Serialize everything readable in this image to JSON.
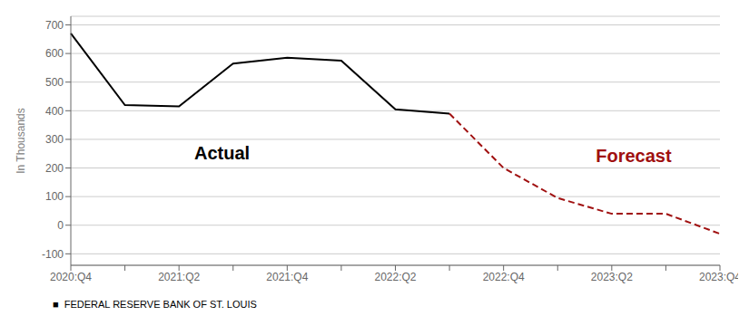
{
  "chart_data": {
    "type": "line",
    "categories": [
      "2020:Q4",
      null,
      "2021:Q2",
      null,
      "2021:Q4",
      null,
      "2022:Q2",
      null,
      "2022:Q4",
      null,
      "2023:Q2",
      null,
      "2023:Q4"
    ],
    "series": [
      {
        "name": "Actual",
        "color": "#000000",
        "line_style": "solid",
        "values": [
          670,
          420,
          415,
          565,
          585,
          575,
          405,
          390,
          null,
          null,
          null,
          null,
          null
        ]
      },
      {
        "name": "Forecast",
        "color": "#a01010",
        "line_style": "dashed",
        "values": [
          null,
          null,
          null,
          null,
          null,
          null,
          null,
          390,
          200,
          95,
          40,
          40,
          -30
        ]
      }
    ],
    "ylabel": "In Thousands",
    "ylim": [
      -140,
      730
    ],
    "yticks": [
      -100,
      0,
      100,
      200,
      300,
      400,
      500,
      600,
      700
    ],
    "grid": true,
    "footer": "■  FEDERAL RESERVE BANK OF ST. LOUIS"
  }
}
